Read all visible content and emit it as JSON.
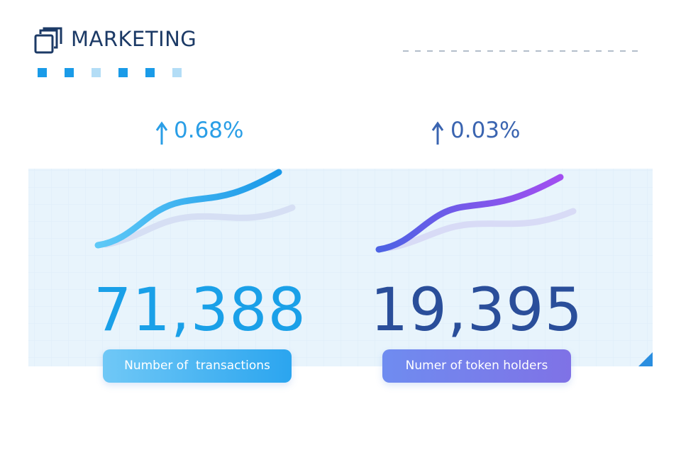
{
  "header": {
    "title": "MARKETING"
  },
  "cards": [
    {
      "change": "0.68%",
      "value": "71,388",
      "label": "Number of  transactions"
    },
    {
      "change": "0.03%",
      "value": "19,395",
      "label": "Numer of token holders"
    }
  ]
}
